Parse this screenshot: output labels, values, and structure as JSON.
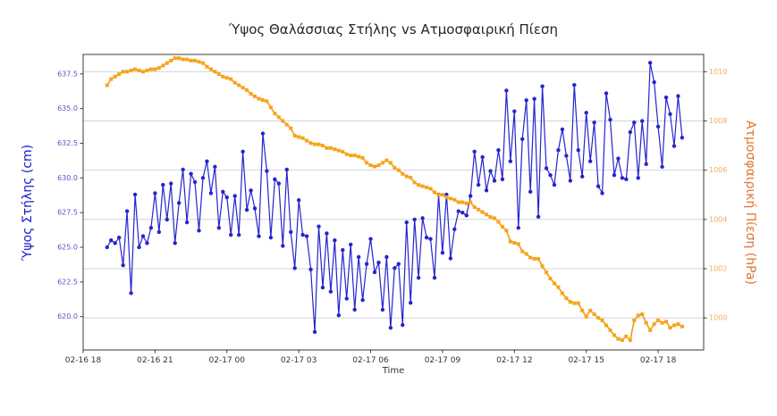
{
  "chart_data": {
    "type": "line",
    "title": "Ύψος Θαλάσσιας Στήλης vs Ατμοσφαιρική Πίεση",
    "xlabel": "Time",
    "sample_start_label": "02-16 19:00",
    "sample_interval_minutes": 10,
    "x_axis": {
      "tick_labels": [
        "02-16 18",
        "02-16 21",
        "02-17 00",
        "02-17 03",
        "02-17 06",
        "02-17 09",
        "02-17 12",
        "02-17 15",
        "02-17 18"
      ],
      "tick_hours": [
        0,
        3,
        6,
        9,
        12,
        15,
        18,
        21,
        24
      ],
      "range_hours": [
        0,
        25.9
      ],
      "tick_color": "#333333"
    },
    "left_axis": {
      "label": "Ύψος Στήλης (cm)",
      "tick_labels": [
        "620.0",
        "622.5",
        "625.0",
        "627.5",
        "630.0",
        "632.5",
        "635.0",
        "637.5"
      ],
      "tick_values": [
        620.0,
        622.5,
        625.0,
        627.5,
        630.0,
        632.5,
        635.0,
        637.5
      ],
      "ylim": [
        617.6,
        638.9
      ],
      "tick_color": "#5555cc",
      "label_color": "#1a1acc"
    },
    "right_axis": {
      "label": "Ατμοσφαιρική Πίεση (hPa)",
      "tick_labels": [
        "1000",
        "1002",
        "1004",
        "1006",
        "1008",
        "1010"
      ],
      "tick_values": [
        1000,
        1002,
        1004,
        1006,
        1008,
        1010
      ],
      "ylim": [
        998.7,
        1010.7
      ],
      "tick_color": "#efae55",
      "label_color": "#e0762e"
    },
    "grid": {
      "horizontal_on_right_ticks": true,
      "color": "#d4d4d4"
    },
    "series": [
      {
        "name": "Ύψος Στήλης (cm)",
        "yaxis": "left",
        "color": "#2525cd",
        "marker": "circle",
        "start_hour": 1.0,
        "step_hours": 0.1666667,
        "values": [
          625.0,
          625.5,
          625.3,
          625.7,
          623.7,
          627.6,
          621.7,
          628.8,
          625.0,
          625.8,
          625.3,
          626.4,
          628.9,
          626.1,
          629.5,
          627.0,
          629.6,
          625.3,
          628.2,
          630.6,
          626.8,
          630.3,
          629.7,
          626.2,
          630.0,
          631.2,
          628.9,
          630.8,
          626.4,
          629.0,
          628.6,
          625.9,
          628.7,
          625.9,
          631.9,
          627.7,
          629.1,
          627.8,
          625.8,
          633.2,
          630.5,
          625.7,
          629.9,
          629.6,
          625.1,
          630.6,
          626.1,
          623.5,
          628.4,
          625.9,
          625.8,
          623.4,
          618.9,
          626.5,
          622.1,
          626.0,
          621.8,
          625.5,
          620.1,
          624.8,
          621.3,
          625.2,
          620.5,
          624.3,
          621.2,
          623.8,
          625.6,
          623.2,
          623.9,
          620.5,
          624.3,
          619.2,
          623.5,
          623.8,
          619.4,
          626.8,
          621.0,
          627.0,
          622.8,
          627.1,
          625.7,
          625.6,
          622.8,
          628.8,
          624.6,
          628.8,
          624.2,
          626.3,
          627.6,
          627.5,
          627.3,
          628.7,
          631.9,
          629.5,
          631.5,
          629.1,
          630.5,
          629.8,
          632.0,
          629.9,
          636.3,
          631.2,
          634.8,
          626.4,
          632.8,
          635.6,
          629.0,
          635.7,
          627.2,
          636.6,
          630.7,
          630.2,
          629.5,
          632.0,
          633.5,
          631.6,
          629.8,
          636.7,
          632.0,
          630.1,
          634.7,
          631.2,
          634.0,
          629.4,
          628.9,
          636.1,
          634.2,
          630.2,
          631.4,
          630.0,
          629.9,
          633.3,
          634.0,
          630.0,
          634.1,
          631.0,
          638.3,
          636.9,
          633.7,
          630.8,
          635.8,
          634.6,
          632.3,
          635.9,
          632.9
        ]
      },
      {
        "name": "Ατμοσφαιρική Πίεση (hPa)",
        "yaxis": "right",
        "color": "#f6a41c",
        "marker": "square",
        "start_hour": 1.0,
        "step_hours": 0.1666667,
        "values": [
          1009.45,
          1009.7,
          1009.8,
          1009.9,
          1010.0,
          1010.0,
          1010.05,
          1010.1,
          1010.05,
          1010.0,
          1010.05,
          1010.1,
          1010.1,
          1010.15,
          1010.25,
          1010.35,
          1010.45,
          1010.55,
          1010.55,
          1010.5,
          1010.5,
          1010.45,
          1010.45,
          1010.4,
          1010.35,
          1010.2,
          1010.1,
          1010.0,
          1009.9,
          1009.8,
          1009.75,
          1009.7,
          1009.55,
          1009.45,
          1009.35,
          1009.25,
          1009.1,
          1009.0,
          1008.9,
          1008.85,
          1008.8,
          1008.55,
          1008.3,
          1008.15,
          1008.0,
          1007.85,
          1007.7,
          1007.4,
          1007.35,
          1007.3,
          1007.2,
          1007.1,
          1007.05,
          1007.05,
          1007.0,
          1006.9,
          1006.9,
          1006.85,
          1006.8,
          1006.75,
          1006.65,
          1006.6,
          1006.6,
          1006.55,
          1006.5,
          1006.3,
          1006.2,
          1006.15,
          1006.2,
          1006.3,
          1006.4,
          1006.3,
          1006.1,
          1006.0,
          1005.85,
          1005.75,
          1005.7,
          1005.5,
          1005.4,
          1005.35,
          1005.3,
          1005.25,
          1005.1,
          1005.0,
          1005.0,
          1004.9,
          1004.85,
          1004.8,
          1004.7,
          1004.7,
          1004.65,
          1004.7,
          1004.5,
          1004.4,
          1004.3,
          1004.2,
          1004.1,
          1004.05,
          1003.9,
          1003.7,
          1003.55,
          1003.1,
          1003.05,
          1003.0,
          1002.7,
          1002.6,
          1002.45,
          1002.4,
          1002.4,
          1002.1,
          1001.85,
          1001.6,
          1001.4,
          1001.25,
          1001.0,
          1000.8,
          1000.65,
          1000.6,
          1000.6,
          1000.3,
          1000.05,
          1000.3,
          1000.15,
          1000.0,
          999.9,
          999.7,
          999.5,
          999.3,
          999.15,
          999.1,
          999.25,
          999.1,
          999.9,
          1000.1,
          1000.15,
          999.8,
          999.5,
          999.75,
          999.9,
          999.8,
          999.85,
          999.6,
          999.7,
          999.75,
          999.65
        ]
      }
    ]
  }
}
